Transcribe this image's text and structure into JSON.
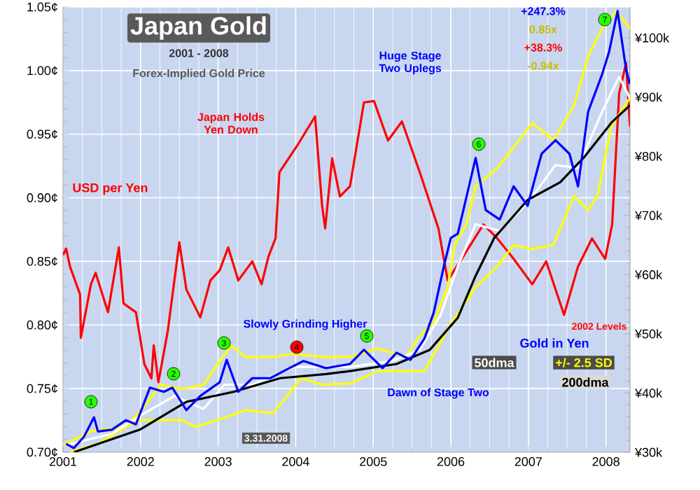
{
  "chart_data": {
    "type": "line",
    "title": "Japan Gold",
    "subtitle": "2001 - 2008",
    "annotations": [
      "Forex-Implied Gold Price",
      "Japan Holds Yen Down",
      "Huge Stage Two Uplegs",
      "+247.3%",
      "0.85x",
      "+38.3%",
      "-0.94x",
      "Slowly Grinding Higher",
      "Dawn of Stage Two",
      "2002 Levels",
      "3.31.2008",
      "1",
      "2",
      "3",
      "4",
      "5",
      "6",
      "7"
    ],
    "xlim": [
      2001,
      2008.31
    ],
    "xticks": [
      2001,
      2002,
      2003,
      2004,
      2005,
      2006,
      2007,
      2008
    ],
    "ylim": [
      0.7,
      1.05
    ],
    "yticks": [
      {
        "value": 0.7,
        "label": "0.70¢"
      },
      {
        "value": 0.75,
        "label": "0.75¢"
      },
      {
        "value": 0.8,
        "label": "0.80¢"
      },
      {
        "value": 0.85,
        "label": "0.85¢"
      },
      {
        "value": 0.9,
        "label": "0.90¢"
      },
      {
        "value": 0.95,
        "label": "0.95¢"
      },
      {
        "value": 1.0,
        "label": "1.00¢"
      },
      {
        "value": 1.05,
        "label": "1.05¢"
      }
    ],
    "y2lim": [
      30,
      105.2
    ],
    "y2ticks": [
      {
        "value": 30,
        "label": "¥30k"
      },
      {
        "value": 40,
        "label": "¥40k"
      },
      {
        "value": 50,
        "label": "¥50k"
      },
      {
        "value": 60,
        "label": "¥60k"
      },
      {
        "value": 70,
        "label": "¥70k"
      },
      {
        "value": 80,
        "label": "¥80k"
      },
      {
        "value": 90,
        "label": "¥90k"
      },
      {
        "value": 100,
        "label": "¥100k"
      }
    ],
    "grid": true,
    "line_style": "solid",
    "series": [
      {
        "name": "USD per Yen",
        "color": "#ff0000",
        "x": [
          2001.0,
          2001.04,
          2001.09,
          2001.22,
          2001.23,
          2001.36,
          2001.42,
          2001.58,
          2001.72,
          2001.78,
          2001.94,
          2002.05,
          2002.14,
          2002.17,
          2002.23,
          2002.35,
          2002.5,
          2002.59,
          2002.77,
          2002.9,
          2003.02,
          2003.13,
          2003.26,
          2003.44,
          2003.56,
          2003.65,
          2003.74,
          2003.79,
          2004.03,
          2004.25,
          2004.34,
          2004.38,
          2004.47,
          2004.57,
          2004.7,
          2004.88,
          2005.01,
          2005.19,
          2005.37,
          2005.6,
          2005.84,
          2005.96,
          2006.14,
          2006.42,
          2006.6,
          2006.81,
          2007.05,
          2007.23,
          2007.46,
          2007.64,
          2007.82,
          2007.99,
          2008.08,
          2008.17,
          2008.26,
          2008.31
        ],
        "values": [
          0.855,
          0.86,
          0.846,
          0.824,
          0.79,
          0.832,
          0.841,
          0.81,
          0.861,
          0.817,
          0.81,
          0.769,
          0.758,
          0.784,
          0.755,
          0.795,
          0.865,
          0.828,
          0.806,
          0.835,
          0.843,
          0.861,
          0.835,
          0.85,
          0.832,
          0.854,
          0.868,
          0.92,
          0.942,
          0.964,
          0.894,
          0.876,
          0.931,
          0.901,
          0.909,
          0.975,
          0.976,
          0.945,
          0.96,
          0.92,
          0.876,
          0.835,
          0.852,
          0.879,
          0.868,
          0.852,
          0.832,
          0.85,
          0.808,
          0.846,
          0.868,
          0.852,
          0.879,
          0.982,
          1.006,
          0.956
        ]
      },
      {
        "name": "+/- 2.5 SD",
        "color": "#ffff00",
        "axis": "y2",
        "x": [
          2001.0,
          2001.36,
          2001.81,
          2002.05,
          2002.26,
          2002.53,
          2002.81,
          2003.02,
          2003.17,
          2003.35,
          2003.71,
          2003.98,
          2004.34,
          2004.7,
          2005.06,
          2005.42,
          2005.6,
          2005.78,
          2005.96,
          2006.05,
          2006.2,
          2006.32,
          2006.6,
          2006.81,
          2007.05,
          2007.32,
          2007.59,
          2007.77,
          2007.95,
          2008.13,
          2008.31
        ],
        "values": [
          31.2,
          33.5,
          34.3,
          37.8,
          41.4,
          40.7,
          41.4,
          45.4,
          48.0,
          46.1,
          46.1,
          46.6,
          46.1,
          46.1,
          47.5,
          46.1,
          49.6,
          52.0,
          57.9,
          65.0,
          68.5,
          74.9,
          78.0,
          81.5,
          85.6,
          82.7,
          88.6,
          96.9,
          101.6,
          104.5,
          101.6
        ]
      },
      {
        "name": null,
        "color": "#ffff00",
        "axis": "y2",
        "x": [
          2001.09,
          2001.45,
          2001.81,
          2001.99,
          2002.26,
          2002.53,
          2002.71,
          2002.99,
          2003.35,
          2003.71,
          2004.07,
          2004.34,
          2004.7,
          2005.06,
          2005.42,
          2005.66,
          2005.96,
          2006.14,
          2006.32,
          2006.6,
          2006.81,
          2007.05,
          2007.32,
          2007.59,
          2007.77,
          2007.89,
          2008.07,
          2008.31
        ],
        "values": [
          30.0,
          31.4,
          34.3,
          35.4,
          35.4,
          35.4,
          34.3,
          35.4,
          37.1,
          36.6,
          42.5,
          41.4,
          41.6,
          43.7,
          43.7,
          43.7,
          50.8,
          54.4,
          57.9,
          61.4,
          65.0,
          64.3,
          65.0,
          73.3,
          70.9,
          73.3,
          85.1,
          89.8
        ]
      },
      {
        "name": "50dma",
        "color": "#ffffff",
        "axis": "y2",
        "x": [
          2001.04,
          2001.63,
          2002.05,
          2002.44,
          2002.81,
          2003.08,
          2003.44,
          2003.98,
          2004.7,
          2005.24,
          2005.6,
          2005.87,
          2006.09,
          2006.32,
          2006.63,
          2006.99,
          2007.35,
          2007.64,
          2007.95,
          2008.17,
          2008.31
        ],
        "values": [
          31.2,
          33.1,
          36.6,
          39.5,
          37.3,
          41.4,
          41.4,
          44.4,
          44.4,
          45.4,
          47.3,
          53.2,
          61.4,
          68.5,
          67.4,
          72.1,
          78.5,
          78.0,
          87.5,
          93.4,
          89.8
        ]
      },
      {
        "name": "200dma",
        "color": "#000000",
        "axis": "y2",
        "x": [
          2001.14,
          2001.99,
          2002.59,
          2003.2,
          2003.8,
          2004.39,
          2004.7,
          2005.3,
          2005.73,
          2006.09,
          2006.32,
          2006.56,
          2006.99,
          2007.41,
          2007.71,
          2008.08,
          2008.31
        ],
        "values": [
          30.0,
          33.8,
          38.5,
          40.2,
          42.5,
          43.2,
          43.7,
          44.9,
          47.3,
          52.7,
          59.8,
          66.2,
          72.6,
          75.6,
          79.7,
          85.8,
          88.6
        ]
      },
      {
        "name": "Gold in Yen",
        "color": "#0000ff",
        "axis": "y2",
        "x": [
          2001.04,
          2001.14,
          2001.27,
          2001.4,
          2001.45,
          2001.63,
          2001.81,
          2001.94,
          2002.05,
          2002.12,
          2002.3,
          2002.41,
          2002.59,
          2002.77,
          2003.02,
          2003.11,
          2003.26,
          2003.44,
          2003.67,
          2003.92,
          2004.1,
          2004.39,
          2004.7,
          2004.88,
          2005.12,
          2005.3,
          2005.48,
          2005.66,
          2005.78,
          2005.91,
          2006.0,
          2006.09,
          2006.32,
          2006.45,
          2006.63,
          2006.81,
          2006.99,
          2007.17,
          2007.35,
          2007.53,
          2007.64,
          2007.77,
          2007.95,
          2008.04,
          2008.15,
          2008.26,
          2008.31
        ],
        "values": [
          31.4,
          30.7,
          32.6,
          35.9,
          33.5,
          33.8,
          35.4,
          34.7,
          38.5,
          40.9,
          40.2,
          40.9,
          37.1,
          39.5,
          41.8,
          45.6,
          40.2,
          42.5,
          42.5,
          44.2,
          45.4,
          44.2,
          44.9,
          47.3,
          44.2,
          46.8,
          45.6,
          49.2,
          53.6,
          61.4,
          66.2,
          66.9,
          79.7,
          70.9,
          69.3,
          74.9,
          71.6,
          80.4,
          82.7,
          80.4,
          74.9,
          87.5,
          93.8,
          97.6,
          104.5,
          94.6,
          92.2
        ]
      }
    ]
  }
}
